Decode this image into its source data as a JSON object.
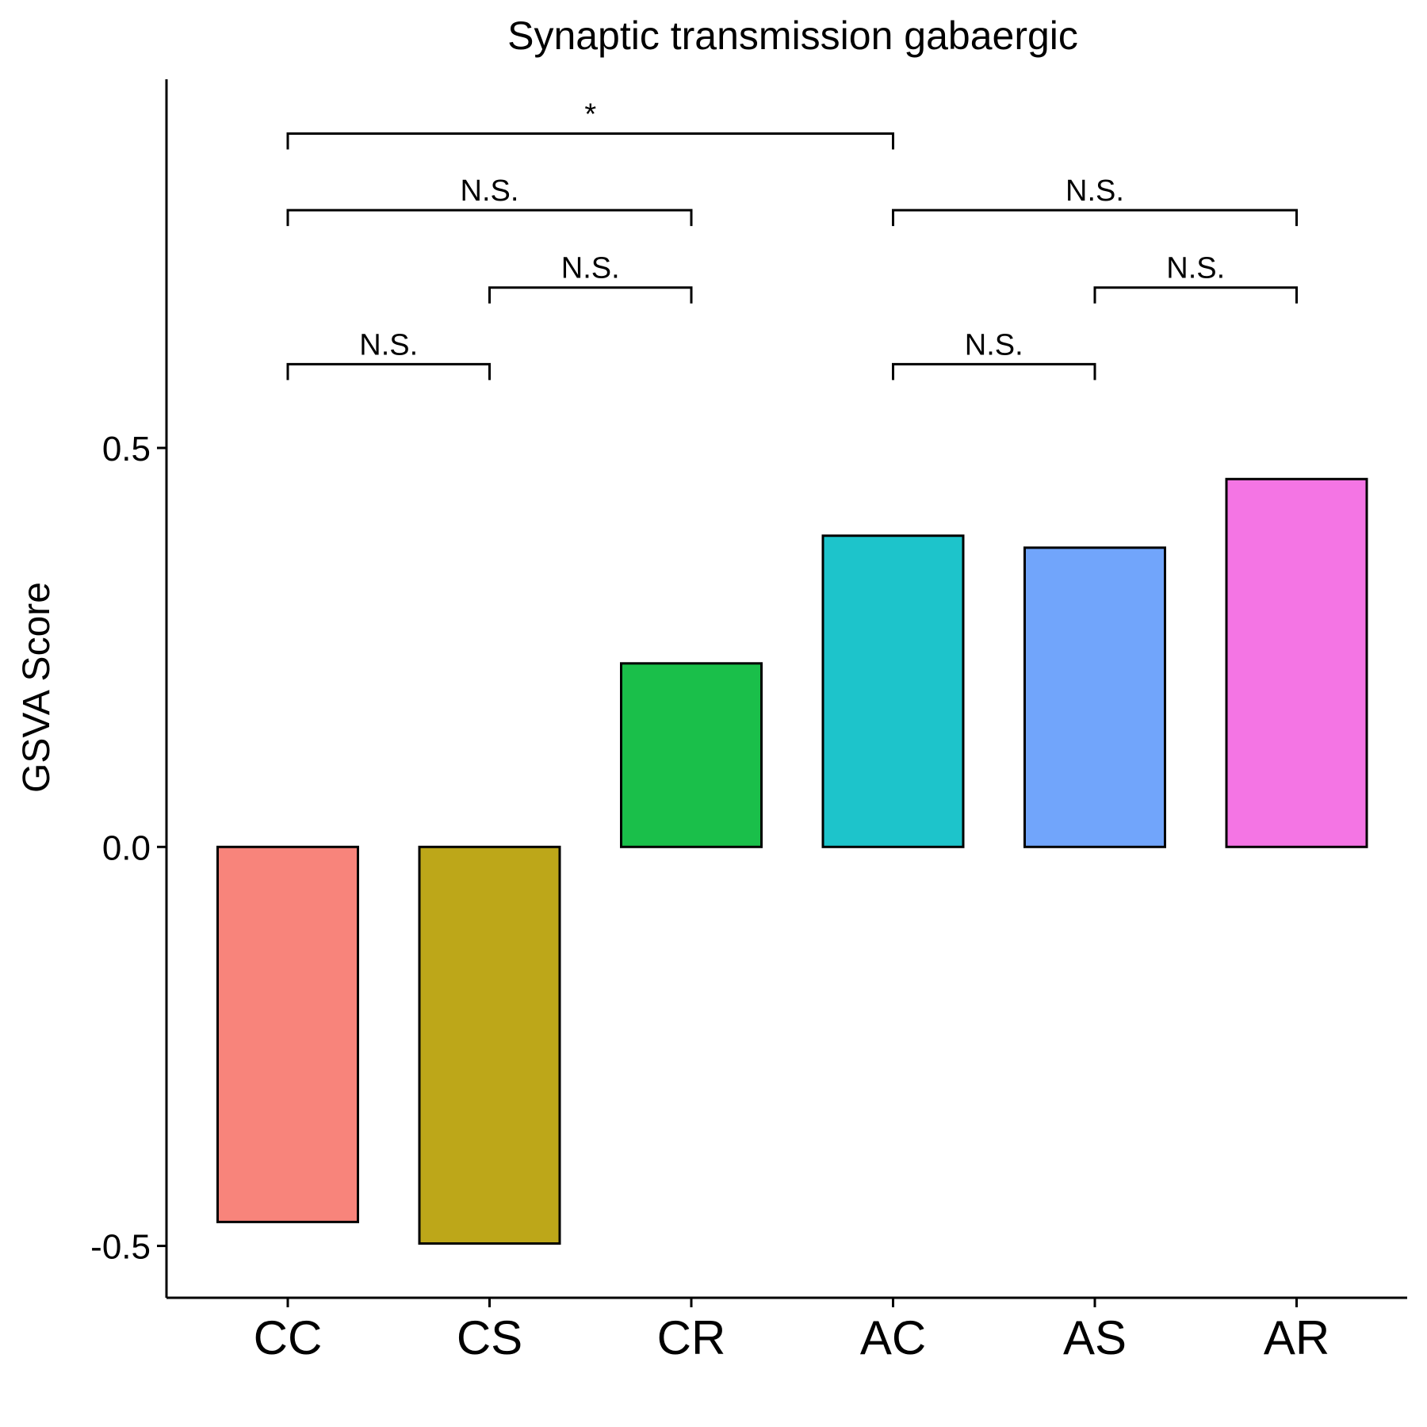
{
  "chart_data": {
    "type": "bar",
    "title": "Synaptic transmission gabaergic",
    "xlabel": "",
    "ylabel": "GSVA Score",
    "categories": [
      "CC",
      "CS",
      "CR",
      "AC",
      "AS",
      "AR"
    ],
    "values": [
      -0.47,
      -0.497,
      0.23,
      0.39,
      0.375,
      0.461
    ],
    "colors": [
      "#F8847B",
      "#BDA719",
      "#1ABF4A",
      "#1DC4CB",
      "#71A5FB",
      "#F475E4"
    ],
    "ylim": [
      -0.565,
      0.962
    ],
    "yticks": [
      -0.5,
      0.0,
      0.5
    ],
    "ytick_labels": [
      "-0.5",
      "0.0",
      "0.5"
    ],
    "grid": false,
    "legend": "none",
    "comparisons": [
      {
        "from": "CC",
        "to": "CS",
        "label": "N.S.",
        "y": 0.605
      },
      {
        "from": "CS",
        "to": "CR",
        "label": "N.S.",
        "y": 0.701
      },
      {
        "from": "CC",
        "to": "CR",
        "label": "N.S.",
        "y": 0.798
      },
      {
        "from": "CC",
        "to": "AC",
        "label": "*",
        "y": 0.894
      },
      {
        "from": "AC",
        "to": "AS",
        "label": "N.S.",
        "y": 0.605
      },
      {
        "from": "AS",
        "to": "AR",
        "label": "N.S.",
        "y": 0.701
      },
      {
        "from": "AC",
        "to": "AR",
        "label": "N.S.",
        "y": 0.798
      }
    ]
  }
}
